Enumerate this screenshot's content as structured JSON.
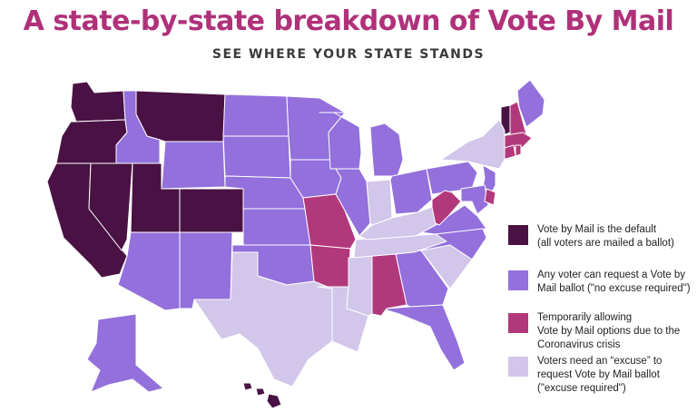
{
  "header": {
    "title": "A state-by-state breakdown of Vote By Mail",
    "subtitle": "SEE WHERE YOUR STATE STANDS"
  },
  "colors": {
    "default": "#4a1244",
    "no_excuse": "#9370dc",
    "temporary": "#b2387c",
    "excuse": "#d2c6ea",
    "border": "#ffffff"
  },
  "legend": [
    {
      "key": "default",
      "lines": [
        "Vote by Mail is the default",
        "(all voters are mailed a ballot)"
      ]
    },
    {
      "key": "no_excuse",
      "lines": [
        "Any voter can request a Vote by",
        "Mail ballot (\"no excuse required\")"
      ]
    },
    {
      "key": "temporary",
      "lines": [
        "Temporarily allowing",
        "Vote by Mail options due to the",
        "Coronavirus crisis"
      ]
    },
    {
      "key": "excuse",
      "lines": [
        "Voters need an “excuse” to",
        "request Vote by Mail ballot",
        "(\"excuse required\")"
      ]
    }
  ],
  "states": [
    {
      "name": "Washington",
      "category": "default"
    },
    {
      "name": "Oregon",
      "category": "default"
    },
    {
      "name": "California",
      "category": "default"
    },
    {
      "name": "Nevada",
      "category": "default"
    },
    {
      "name": "Utah",
      "category": "default"
    },
    {
      "name": "Montana",
      "category": "default"
    },
    {
      "name": "Colorado",
      "category": "default"
    },
    {
      "name": "Hawaii",
      "category": "default"
    },
    {
      "name": "Vermont",
      "category": "default"
    },
    {
      "name": "Idaho",
      "category": "no_excuse"
    },
    {
      "name": "Wyoming",
      "category": "no_excuse"
    },
    {
      "name": "Arizona",
      "category": "no_excuse"
    },
    {
      "name": "New Mexico",
      "category": "no_excuse"
    },
    {
      "name": "North Dakota",
      "category": "no_excuse"
    },
    {
      "name": "South Dakota",
      "category": "no_excuse"
    },
    {
      "name": "Nebraska",
      "category": "no_excuse"
    },
    {
      "name": "Kansas",
      "category": "no_excuse"
    },
    {
      "name": "Oklahoma",
      "category": "no_excuse"
    },
    {
      "name": "Minnesota",
      "category": "no_excuse"
    },
    {
      "name": "Iowa",
      "category": "no_excuse"
    },
    {
      "name": "Wisconsin",
      "category": "no_excuse"
    },
    {
      "name": "Illinois",
      "category": "no_excuse"
    },
    {
      "name": "Michigan",
      "category": "no_excuse"
    },
    {
      "name": "Ohio",
      "category": "no_excuse"
    },
    {
      "name": "Pennsylvania",
      "category": "no_excuse"
    },
    {
      "name": "Virginia",
      "category": "no_excuse"
    },
    {
      "name": "North Carolina",
      "category": "no_excuse"
    },
    {
      "name": "Georgia",
      "category": "no_excuse"
    },
    {
      "name": "Florida",
      "category": "no_excuse"
    },
    {
      "name": "Maine",
      "category": "no_excuse"
    },
    {
      "name": "New Jersey",
      "category": "no_excuse"
    },
    {
      "name": "Maryland",
      "category": "no_excuse"
    },
    {
      "name": "Alaska",
      "category": "no_excuse"
    },
    {
      "name": "Missouri",
      "category": "temporary"
    },
    {
      "name": "Arkansas",
      "category": "temporary"
    },
    {
      "name": "Alabama",
      "category": "temporary"
    },
    {
      "name": "West Virginia",
      "category": "temporary"
    },
    {
      "name": "New Hampshire",
      "category": "temporary"
    },
    {
      "name": "Massachusetts",
      "category": "temporary"
    },
    {
      "name": "Connecticut",
      "category": "temporary"
    },
    {
      "name": "Rhode Island",
      "category": "temporary"
    },
    {
      "name": "Delaware",
      "category": "temporary"
    },
    {
      "name": "Texas",
      "category": "excuse"
    },
    {
      "name": "Louisiana",
      "category": "excuse"
    },
    {
      "name": "Mississippi",
      "category": "excuse"
    },
    {
      "name": "Tennessee",
      "category": "excuse"
    },
    {
      "name": "Kentucky",
      "category": "excuse"
    },
    {
      "name": "Indiana",
      "category": "excuse"
    },
    {
      "name": "South Carolina",
      "category": "excuse"
    },
    {
      "name": "New York",
      "category": "excuse"
    }
  ]
}
